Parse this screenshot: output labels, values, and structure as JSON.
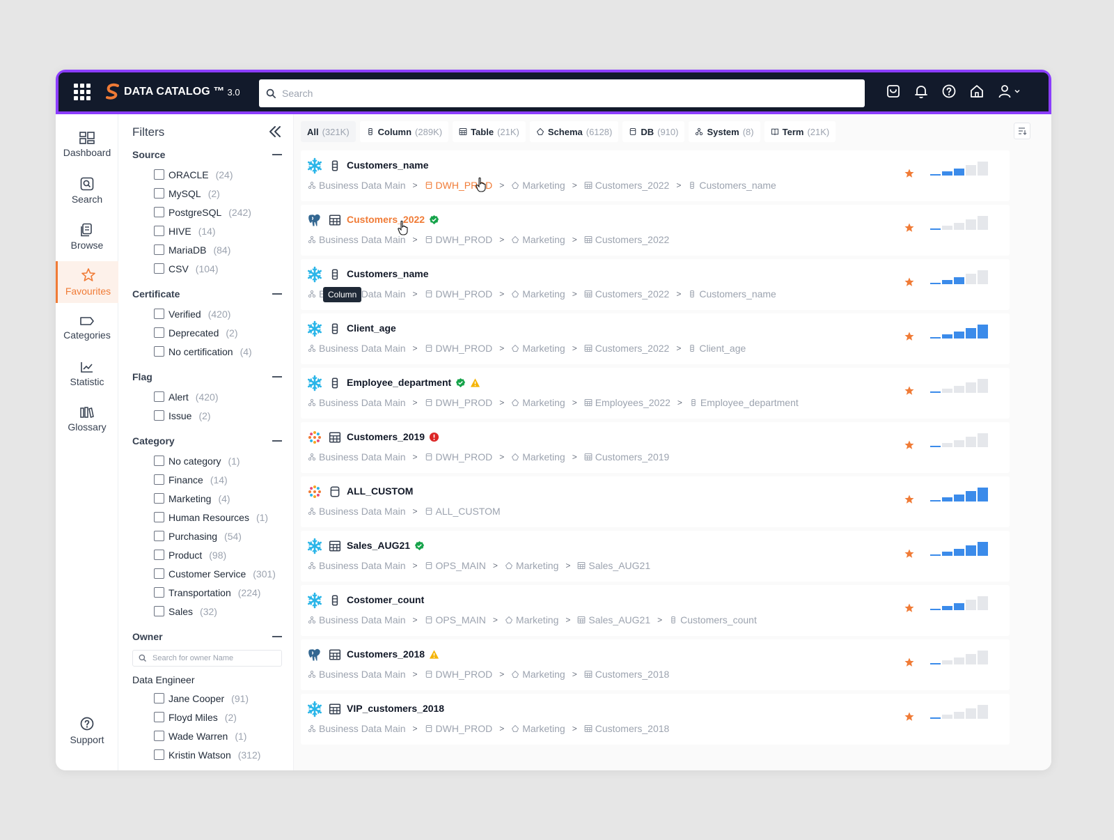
{
  "app": {
    "title": "DATA CATALOG ™",
    "version": "3.0",
    "colors": {
      "topbar": "#121a2b",
      "accent": "#f07b36",
      "outline": "#8b3dff",
      "bar_blue": "#3b8bea",
      "bar_grey": "#e5e7eb"
    }
  },
  "topbar": {
    "search_placeholder": "Search",
    "icons": [
      "cart-icon",
      "bell-icon",
      "help-icon",
      "home-icon",
      "user-icon"
    ]
  },
  "nav": {
    "items": [
      {
        "label": "Dashboard",
        "icon": "dashboard-icon",
        "active": false
      },
      {
        "label": "Search",
        "icon": "search-icon",
        "active": false
      },
      {
        "label": "Browse",
        "icon": "browse-icon",
        "active": false
      },
      {
        "label": "Favourites",
        "icon": "star-icon",
        "active": true
      },
      {
        "label": "Categories",
        "icon": "tag-icon",
        "active": false
      },
      {
        "label": "Statistic",
        "icon": "chart-icon",
        "active": false
      },
      {
        "label": "Glossary",
        "icon": "book-icon",
        "active": false
      }
    ],
    "support": "Support"
  },
  "filters": {
    "title": "Filters",
    "source": {
      "label": "Source",
      "options": [
        {
          "label": "ORACLE",
          "count": "(24)"
        },
        {
          "label": "MySQL",
          "count": "(2)"
        },
        {
          "label": "PostgreSQL",
          "count": "(242)"
        },
        {
          "label": "HIVE",
          "count": "(14)"
        },
        {
          "label": "MariaDB",
          "count": "(84)"
        },
        {
          "label": "CSV",
          "count": "(104)"
        }
      ]
    },
    "certificate": {
      "label": "Certificate",
      "options": [
        {
          "label": "Verified",
          "count": "(420)"
        },
        {
          "label": "Deprecated",
          "count": "(2)"
        },
        {
          "label": "No certification",
          "count": "(4)"
        }
      ]
    },
    "flag": {
      "label": "Flag",
      "options": [
        {
          "label": "Alert",
          "count": "(420)"
        },
        {
          "label": "Issue",
          "count": "(2)"
        }
      ]
    },
    "category": {
      "label": "Category",
      "options": [
        {
          "label": "No category",
          "count": "(1)"
        },
        {
          "label": "Finance",
          "count": "(14)"
        },
        {
          "label": "Marketing",
          "count": "(4)"
        },
        {
          "label": "Human Resources",
          "count": "(1)"
        },
        {
          "label": "Purchasing",
          "count": "(54)"
        },
        {
          "label": "Product",
          "count": "(98)"
        },
        {
          "label": "Customer Service",
          "count": "(301)"
        },
        {
          "label": "Transportation",
          "count": "(224)"
        },
        {
          "label": "Sales",
          "count": "(32)"
        }
      ]
    },
    "owner": {
      "label": "Owner",
      "search_placeholder": "Search for owner Name",
      "group": "Data Engineer",
      "options": [
        {
          "label": "Jane Cooper",
          "count": "(91)"
        },
        {
          "label": "Floyd Miles",
          "count": "(2)"
        },
        {
          "label": "Wade Warren",
          "count": "(1)"
        },
        {
          "label": "Kristin Watson",
          "count": "(312)"
        }
      ]
    }
  },
  "tabs": [
    {
      "label": "All",
      "count": "(321K)",
      "icon": null,
      "active": true
    },
    {
      "label": "Column",
      "count": "(289K)",
      "icon": "column-icon",
      "active": false
    },
    {
      "label": "Table",
      "count": "(21K)",
      "icon": "table-icon",
      "active": false
    },
    {
      "label": "Schema",
      "count": "(6128)",
      "icon": "schema-icon",
      "active": false
    },
    {
      "label": "DB",
      "count": "(910)",
      "icon": "db-icon",
      "active": false
    },
    {
      "label": "System",
      "count": "(8)",
      "icon": "system-icon",
      "active": false
    },
    {
      "label": "Term",
      "count": "(21K)",
      "icon": "term-icon",
      "active": false
    }
  ],
  "tooltip": "Column",
  "results": [
    {
      "source": "snowflake",
      "type": "column",
      "title": "Customers_name",
      "highlight": false,
      "badges": [],
      "quality": 3,
      "path": [
        {
          "text": "Business Data Main",
          "icon": "system"
        },
        {
          "text": "DWH_PROD",
          "icon": "db",
          "hl": true
        },
        {
          "text": "Marketing",
          "icon": "schema"
        },
        {
          "text": "Customers_2022",
          "icon": "table"
        },
        {
          "text": "Customers_name",
          "icon": "column"
        }
      ]
    },
    {
      "source": "postgres",
      "type": "table",
      "title": "Customers_2022",
      "highlight": true,
      "badges": [
        "verified"
      ],
      "quality": 1,
      "path": [
        {
          "text": "Business Data Main",
          "icon": "system"
        },
        {
          "text": "DWH_PROD",
          "icon": "db"
        },
        {
          "text": "Marketing",
          "icon": "schema"
        },
        {
          "text": "Customers_2022",
          "icon": "table"
        }
      ]
    },
    {
      "source": "snowflake",
      "type": "column",
      "title": "Customers_name",
      "highlight": false,
      "badges": [],
      "quality": 3,
      "tooltip": true,
      "path": [
        {
          "text": "Business Data Main",
          "icon": "system"
        },
        {
          "text": "DWH_PROD",
          "icon": "db"
        },
        {
          "text": "Marketing",
          "icon": "schema"
        },
        {
          "text": "Customers_2022",
          "icon": "table"
        },
        {
          "text": "Customers_name",
          "icon": "column"
        }
      ]
    },
    {
      "source": "snowflake",
      "type": "column",
      "title": "Client_age",
      "highlight": false,
      "badges": [],
      "quality": 5,
      "path": [
        {
          "text": "Business Data Main",
          "icon": "system"
        },
        {
          "text": "DWH_PROD",
          "icon": "db"
        },
        {
          "text": "Marketing",
          "icon": "schema"
        },
        {
          "text": "Customers_2022",
          "icon": "table"
        },
        {
          "text": "Client_age",
          "icon": "column"
        }
      ]
    },
    {
      "source": "snowflake",
      "type": "column",
      "title": "Employee_department",
      "highlight": false,
      "badges": [
        "verified",
        "warning"
      ],
      "quality": 1,
      "path": [
        {
          "text": "Business Data Main",
          "icon": "system"
        },
        {
          "text": "DWH_PROD",
          "icon": "db"
        },
        {
          "text": "Marketing",
          "icon": "schema"
        },
        {
          "text": "Employees_2022",
          "icon": "table"
        },
        {
          "text": "Employee_department",
          "icon": "column"
        }
      ]
    },
    {
      "source": "spark",
      "type": "table",
      "title": "Customers_2019",
      "highlight": false,
      "badges": [
        "error"
      ],
      "quality": 1,
      "path": [
        {
          "text": "Business Data Main",
          "icon": "system"
        },
        {
          "text": "DWH_PROD",
          "icon": "db"
        },
        {
          "text": "Marketing",
          "icon": "schema"
        },
        {
          "text": "Customers_2019",
          "icon": "table"
        }
      ]
    },
    {
      "source": "spark",
      "type": "db",
      "title": "ALL_CUSTOM",
      "highlight": false,
      "badges": [],
      "quality": 5,
      "path": [
        {
          "text": "Business Data Main",
          "icon": "system"
        },
        {
          "text": "ALL_CUSTOM",
          "icon": "db"
        }
      ]
    },
    {
      "source": "snowflake",
      "type": "table",
      "title": "Sales_AUG21",
      "highlight": false,
      "badges": [
        "verified"
      ],
      "quality": 5,
      "path": [
        {
          "text": "Business Data Main",
          "icon": "system"
        },
        {
          "text": "OPS_MAIN",
          "icon": "db"
        },
        {
          "text": "Marketing",
          "icon": "schema"
        },
        {
          "text": "Sales_AUG21",
          "icon": "table"
        }
      ]
    },
    {
      "source": "snowflake",
      "type": "column",
      "title": "Costomer_count",
      "highlight": false,
      "badges": [],
      "quality": 3,
      "path": [
        {
          "text": "Business Data Main",
          "icon": "system"
        },
        {
          "text": "OPS_MAIN",
          "icon": "db"
        },
        {
          "text": "Marketing",
          "icon": "schema"
        },
        {
          "text": "Sales_AUG21",
          "icon": "table"
        },
        {
          "text": "Customers_count",
          "icon": "column"
        }
      ]
    },
    {
      "source": "postgres",
      "type": "table",
      "title": "Customers_2018",
      "highlight": false,
      "badges": [
        "warning"
      ],
      "quality": 1,
      "path": [
        {
          "text": "Business Data Main",
          "icon": "system"
        },
        {
          "text": "DWH_PROD",
          "icon": "db"
        },
        {
          "text": "Marketing",
          "icon": "schema"
        },
        {
          "text": "Customers_2018",
          "icon": "table"
        }
      ]
    },
    {
      "source": "snowflake",
      "type": "table",
      "title": "VIP_customers_2018",
      "highlight": false,
      "badges": [],
      "quality": 1,
      "path": [
        {
          "text": "Business Data Main",
          "icon": "system"
        },
        {
          "text": "DWH_PROD",
          "icon": "db"
        },
        {
          "text": "Marketing",
          "icon": "schema"
        },
        {
          "text": "Customers_2018",
          "icon": "table"
        }
      ]
    }
  ]
}
